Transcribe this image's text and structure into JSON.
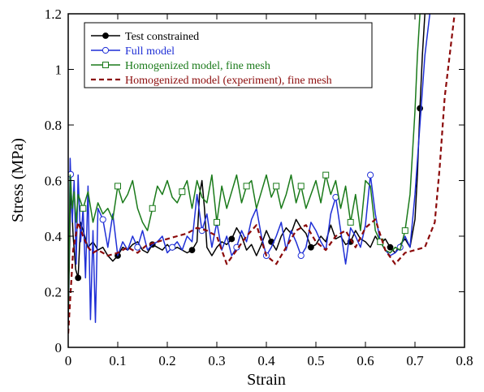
{
  "chart_data": {
    "type": "line",
    "xlabel": "Strain",
    "ylabel": "Stress (MPa)",
    "xlim": [
      0,
      0.8
    ],
    "ylim": [
      0,
      1.2
    ],
    "x_ticks": [
      "0",
      "0.1",
      "0.2",
      "0.3",
      "0.4",
      "0.5",
      "0.6",
      "0.7",
      "0.8"
    ],
    "y_ticks": [
      "0",
      "0.2",
      "0.4",
      "0.6",
      "0.8",
      "1",
      "1.2"
    ],
    "grid": false,
    "legend_position": "top-left",
    "series": [
      {
        "name": "Test constrained",
        "color": "#000000",
        "dash": "solid",
        "marker": "filled-circle",
        "x": [
          0,
          0.005,
          0.01,
          0.015,
          0.02,
          0.025,
          0.03,
          0.04,
          0.05,
          0.06,
          0.07,
          0.08,
          0.09,
          0.1,
          0.11,
          0.12,
          0.13,
          0.14,
          0.15,
          0.16,
          0.17,
          0.18,
          0.19,
          0.2,
          0.21,
          0.22,
          0.23,
          0.24,
          0.25,
          0.26,
          0.265,
          0.27,
          0.275,
          0.28,
          0.29,
          0.3,
          0.31,
          0.32,
          0.33,
          0.34,
          0.35,
          0.36,
          0.37,
          0.38,
          0.39,
          0.4,
          0.41,
          0.42,
          0.43,
          0.44,
          0.45,
          0.46,
          0.47,
          0.48,
          0.49,
          0.5,
          0.51,
          0.52,
          0.53,
          0.54,
          0.55,
          0.56,
          0.57,
          0.58,
          0.59,
          0.6,
          0.61,
          0.62,
          0.63,
          0.64,
          0.65,
          0.66,
          0.67,
          0.68,
          0.69,
          0.7,
          0.705,
          0.71,
          0.715,
          0.72
        ],
        "y": [
          0.08,
          0.58,
          0.4,
          0.28,
          0.25,
          0.45,
          0.42,
          0.36,
          0.38,
          0.35,
          0.36,
          0.33,
          0.31,
          0.33,
          0.36,
          0.35,
          0.37,
          0.38,
          0.35,
          0.34,
          0.37,
          0.36,
          0.35,
          0.37,
          0.35,
          0.36,
          0.35,
          0.34,
          0.35,
          0.38,
          0.55,
          0.6,
          0.5,
          0.36,
          0.33,
          0.36,
          0.38,
          0.37,
          0.39,
          0.43,
          0.4,
          0.35,
          0.37,
          0.33,
          0.37,
          0.42,
          0.38,
          0.35,
          0.4,
          0.43,
          0.41,
          0.46,
          0.43,
          0.41,
          0.36,
          0.37,
          0.4,
          0.38,
          0.44,
          0.39,
          0.4,
          0.37,
          0.38,
          0.42,
          0.39,
          0.38,
          0.36,
          0.4,
          0.37,
          0.39,
          0.36,
          0.34,
          0.37,
          0.39,
          0.36,
          0.46,
          0.62,
          0.86,
          1.05,
          1.2
        ],
        "markers_at": [
          0.02,
          0.1,
          0.17,
          0.25,
          0.33,
          0.41,
          0.49,
          0.57,
          0.65,
          0.71
        ]
      },
      {
        "name": "Full model",
        "color": "#1f2fd6",
        "dash": "solid",
        "marker": "open-circle",
        "x": [
          0,
          0.004,
          0.008,
          0.012,
          0.016,
          0.02,
          0.025,
          0.03,
          0.035,
          0.04,
          0.045,
          0.05,
          0.055,
          0.06,
          0.07,
          0.08,
          0.09,
          0.1,
          0.11,
          0.12,
          0.13,
          0.14,
          0.15,
          0.16,
          0.17,
          0.18,
          0.19,
          0.2,
          0.21,
          0.22,
          0.23,
          0.24,
          0.25,
          0.26,
          0.27,
          0.28,
          0.29,
          0.3,
          0.31,
          0.32,
          0.33,
          0.34,
          0.35,
          0.36,
          0.37,
          0.38,
          0.39,
          0.4,
          0.41,
          0.42,
          0.43,
          0.44,
          0.45,
          0.46,
          0.47,
          0.48,
          0.49,
          0.5,
          0.51,
          0.52,
          0.53,
          0.54,
          0.55,
          0.56,
          0.57,
          0.58,
          0.59,
          0.6,
          0.61,
          0.62,
          0.63,
          0.64,
          0.65,
          0.66,
          0.67,
          0.68,
          0.69,
          0.7,
          0.71,
          0.72,
          0.73
        ],
        "y": [
          0.1,
          0.68,
          0.45,
          0.6,
          0.3,
          0.62,
          0.38,
          0.5,
          0.25,
          0.58,
          0.1,
          0.42,
          0.09,
          0.5,
          0.46,
          0.36,
          0.48,
          0.33,
          0.38,
          0.35,
          0.4,
          0.36,
          0.42,
          0.35,
          0.37,
          0.38,
          0.4,
          0.34,
          0.36,
          0.38,
          0.35,
          0.4,
          0.38,
          0.55,
          0.42,
          0.48,
          0.36,
          0.45,
          0.35,
          0.4,
          0.33,
          0.36,
          0.42,
          0.38,
          0.46,
          0.5,
          0.4,
          0.33,
          0.36,
          0.4,
          0.45,
          0.35,
          0.42,
          0.38,
          0.33,
          0.36,
          0.45,
          0.42,
          0.38,
          0.35,
          0.48,
          0.54,
          0.42,
          0.3,
          0.43,
          0.4,
          0.36,
          0.44,
          0.62,
          0.48,
          0.38,
          0.35,
          0.33,
          0.34,
          0.36,
          0.4,
          0.36,
          0.55,
          0.8,
          1.05,
          1.2
        ],
        "markers_at": [
          0.005,
          0.07,
          0.14,
          0.21,
          0.27,
          0.34,
          0.4,
          0.47,
          0.54,
          0.61,
          0.67
        ]
      },
      {
        "name": "Homogenized model, fine mesh",
        "color": "#1a7a1a",
        "dash": "solid",
        "marker": "open-square",
        "x": [
          0,
          0.004,
          0.008,
          0.012,
          0.016,
          0.02,
          0.03,
          0.04,
          0.05,
          0.06,
          0.07,
          0.08,
          0.09,
          0.1,
          0.11,
          0.12,
          0.13,
          0.14,
          0.15,
          0.16,
          0.17,
          0.18,
          0.19,
          0.2,
          0.21,
          0.22,
          0.23,
          0.24,
          0.25,
          0.26,
          0.27,
          0.28,
          0.29,
          0.3,
          0.31,
          0.32,
          0.33,
          0.34,
          0.35,
          0.36,
          0.37,
          0.38,
          0.39,
          0.4,
          0.41,
          0.42,
          0.43,
          0.44,
          0.45,
          0.46,
          0.47,
          0.48,
          0.49,
          0.5,
          0.51,
          0.52,
          0.53,
          0.54,
          0.55,
          0.56,
          0.57,
          0.58,
          0.59,
          0.6,
          0.61,
          0.62,
          0.63,
          0.64,
          0.65,
          0.66,
          0.67,
          0.68,
          0.69,
          0.7,
          0.705,
          0.71
        ],
        "y": [
          0.12,
          0.62,
          0.5,
          0.56,
          0.45,
          0.55,
          0.5,
          0.56,
          0.45,
          0.52,
          0.48,
          0.5,
          0.46,
          0.58,
          0.52,
          0.55,
          0.6,
          0.5,
          0.45,
          0.42,
          0.5,
          0.58,
          0.55,
          0.6,
          0.54,
          0.52,
          0.56,
          0.6,
          0.5,
          0.6,
          0.54,
          0.52,
          0.62,
          0.45,
          0.58,
          0.5,
          0.56,
          0.62,
          0.52,
          0.58,
          0.6,
          0.5,
          0.56,
          0.62,
          0.54,
          0.58,
          0.5,
          0.55,
          0.62,
          0.52,
          0.58,
          0.5,
          0.55,
          0.6,
          0.52,
          0.62,
          0.55,
          0.6,
          0.5,
          0.58,
          0.45,
          0.55,
          0.42,
          0.6,
          0.58,
          0.42,
          0.38,
          0.35,
          0.34,
          0.36,
          0.35,
          0.42,
          0.55,
          0.85,
          1.05,
          1.2
        ],
        "markers_at": [
          0.03,
          0.1,
          0.17,
          0.23,
          0.3,
          0.36,
          0.42,
          0.47,
          0.52,
          0.57,
          0.63,
          0.68
        ]
      },
      {
        "name": "Homogenized model (experiment), fine mesh",
        "color": "#8b0a0a",
        "dash": "dashed",
        "marker": "none",
        "x": [
          0,
          0.005,
          0.01,
          0.02,
          0.03,
          0.04,
          0.05,
          0.06,
          0.08,
          0.1,
          0.12,
          0.14,
          0.16,
          0.18,
          0.2,
          0.22,
          0.24,
          0.26,
          0.28,
          0.3,
          0.32,
          0.34,
          0.36,
          0.38,
          0.4,
          0.42,
          0.44,
          0.46,
          0.48,
          0.5,
          0.52,
          0.54,
          0.56,
          0.58,
          0.6,
          0.62,
          0.64,
          0.66,
          0.68,
          0.7,
          0.72,
          0.74,
          0.75,
          0.76,
          0.77,
          0.78
        ],
        "y": [
          0.05,
          0.2,
          0.35,
          0.45,
          0.4,
          0.36,
          0.34,
          0.35,
          0.33,
          0.34,
          0.36,
          0.34,
          0.37,
          0.38,
          0.39,
          0.4,
          0.41,
          0.43,
          0.42,
          0.4,
          0.3,
          0.35,
          0.4,
          0.44,
          0.33,
          0.3,
          0.36,
          0.42,
          0.44,
          0.38,
          0.35,
          0.4,
          0.42,
          0.36,
          0.43,
          0.46,
          0.35,
          0.3,
          0.34,
          0.35,
          0.36,
          0.45,
          0.65,
          0.9,
          1.05,
          1.2
        ]
      }
    ]
  }
}
